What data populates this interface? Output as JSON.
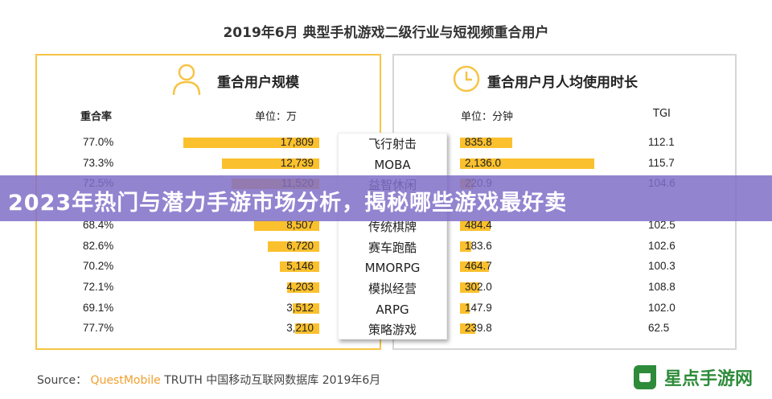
{
  "title": "2019年6月 典型手机游戏二级行业与短视频重合用户",
  "chart_data": [
    {
      "type": "bar",
      "title": "重合用户规模",
      "unit_label": "单位：万",
      "share_header": "重合率",
      "categories": [
        "飞行射击",
        "MOBA",
        "益智休闲",
        "",
        "传统棋牌",
        "赛车跑酷",
        "MMORPG",
        "模拟经营",
        "ARPG",
        "策略游戏"
      ],
      "share": [
        "77.0%",
        "73.3%",
        "72.5%",
        "",
        "68.4%",
        "82.6%",
        "70.2%",
        "72.1%",
        "69.1%",
        "77.7%"
      ],
      "values": [
        17809,
        12739,
        11520,
        null,
        8507,
        6720,
        5146,
        4203,
        3512,
        3210
      ],
      "labels": [
        "17,809",
        "12,739",
        "11,520",
        "",
        "8,507",
        "6,720",
        "5,146",
        "4,203",
        "3,512",
        "3,210"
      ],
      "color": "#fbc02d"
    },
    {
      "type": "bar",
      "title": "重合用户月人均使用时长",
      "unit_label": "单位：分钟",
      "tgi_header": "TGI",
      "categories": [
        "飞行射击",
        "MOBA",
        "益智休闲",
        "",
        "传统棋牌",
        "赛车跑酷",
        "MMORPG",
        "模拟经营",
        "ARPG",
        "策略游戏"
      ],
      "values": [
        835.8,
        2136.0,
        220.9,
        null,
        484.4,
        183.6,
        464.7,
        302.0,
        147.9,
        239.8
      ],
      "labels": [
        "835.8",
        "2,136.0",
        "220.9",
        "",
        "484.4",
        "183.6",
        "464.7",
        "302.0",
        "147.9",
        "239.8"
      ],
      "tgi": [
        "112.1",
        "115.7",
        "104.6",
        "",
        "102.5",
        "102.6",
        "100.3",
        "108.8",
        "102.0",
        "62.5"
      ],
      "color": "#fbc02d"
    }
  ],
  "overlay_banner": "2023年热门与潜力手游市场分析，揭秘哪些游戏最好卖",
  "footer": {
    "source_label": "Source：",
    "brand": "QuestMobile",
    "rest": "TRUTH 中国移动互联网数据库 2019年6月"
  },
  "logo": {
    "text": "星点手游网",
    "color": "#2e8b3a"
  },
  "icons": {
    "left": "person-icon",
    "right": "clock-icon"
  }
}
